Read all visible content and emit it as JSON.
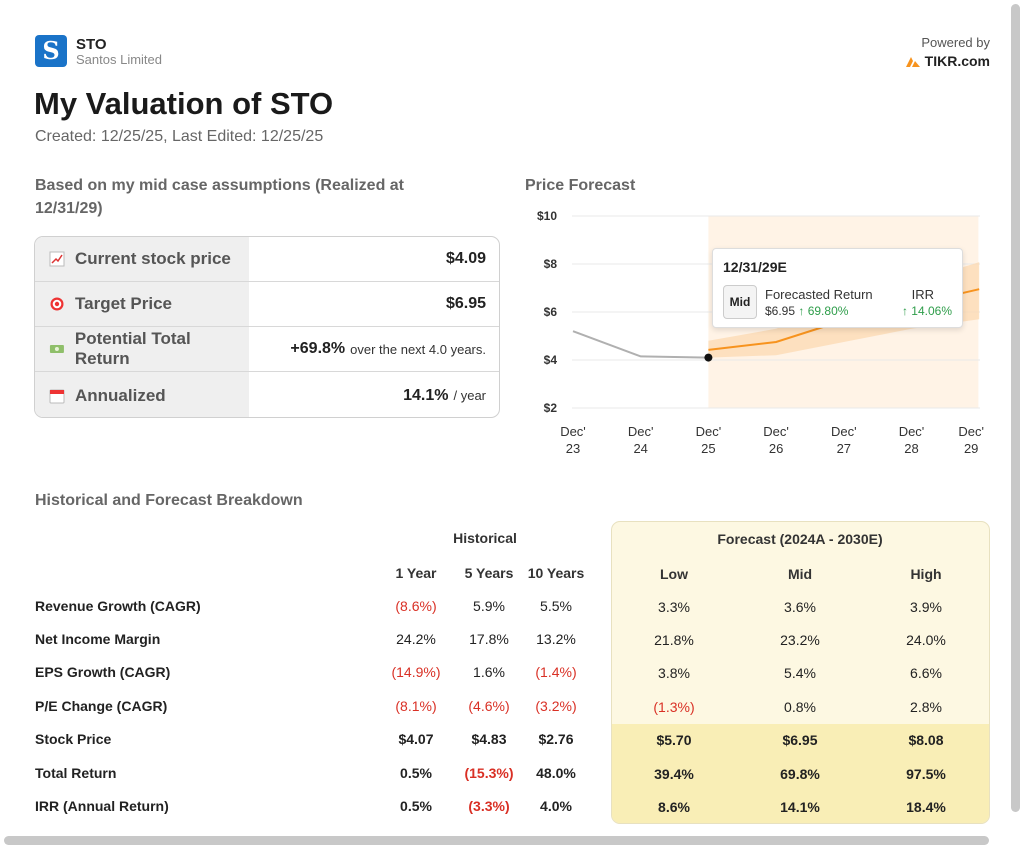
{
  "header": {
    "logo_letter": "S",
    "ticker": "STO",
    "company": "Santos Limited",
    "powered_by": "Powered by",
    "brand": "TIKR.com",
    "title": "My Valuation of STO",
    "subtitle": "Created: 12/25/25, Last Edited: 12/25/25"
  },
  "summary": {
    "heading": "Based on my mid case assumptions (Realized at 12/31/29)",
    "rows": [
      {
        "icon": "chart-increasing-icon",
        "label": "Current stock price",
        "value": "$4.09",
        "suffix": ""
      },
      {
        "icon": "target-icon",
        "label": "Target Price",
        "value": "$6.95",
        "suffix": ""
      },
      {
        "icon": "money-icon",
        "label": "Potential Total Return",
        "value": "+69.8%",
        "suffix": "over the next 4.0 years."
      },
      {
        "icon": "calendar-icon",
        "label": "Annualized",
        "value": "14.1%",
        "suffix": "/ year"
      }
    ]
  },
  "chart": {
    "heading": "Price Forecast",
    "tooltip": {
      "date": "12/31/29E",
      "badge": "Mid",
      "return_label": "Forecasted Return",
      "return_value": "$6.95",
      "return_pct": "↑ 69.80%",
      "irr_label": "IRR",
      "irr_value": "↑ 14.06%"
    }
  },
  "chart_data": {
    "type": "line",
    "x": [
      "Dec' 23",
      "Dec' 24",
      "Dec' 25",
      "Dec' 26",
      "Dec' 27",
      "Dec' 28",
      "Dec' 29"
    ],
    "y_ticks": [
      "$10",
      "$8",
      "$6",
      "$4",
      "$2"
    ],
    "ylim": [
      2,
      10
    ],
    "series": [
      {
        "kind": "historical",
        "color": "#b0b0b0",
        "points": [
          [
            0,
            5.2
          ],
          [
            1,
            4.15
          ],
          [
            2,
            4.1
          ]
        ]
      },
      {
        "kind": "forecast-mid",
        "color": "#f7931e",
        "points": [
          [
            2,
            4.42
          ],
          [
            3,
            4.75
          ],
          [
            4,
            5.65
          ],
          [
            5,
            6.3
          ],
          [
            6,
            6.95
          ]
        ]
      }
    ],
    "band": {
      "low": [
        [
          2,
          4.1
        ],
        [
          3,
          4.2
        ],
        [
          4,
          4.75
        ],
        [
          5,
          5.3
        ],
        [
          6,
          5.7
        ]
      ],
      "high": [
        [
          2,
          4.8
        ],
        [
          3,
          5.3
        ],
        [
          4,
          6.4
        ],
        [
          5,
          7.2
        ],
        [
          6,
          8.08
        ]
      ]
    },
    "current_marker": [
      2,
      4.1
    ]
  },
  "breakdown": {
    "heading": "Historical and Forecast Breakdown",
    "historical_label": "Historical",
    "forecast_label": "Forecast (2024A - 2030E)",
    "hist_cols": [
      "1 Year",
      "5 Years",
      "10 Years"
    ],
    "fc_cols": [
      "Low",
      "Mid",
      "High"
    ],
    "rows": [
      {
        "label": "Revenue Growth (CAGR)",
        "hist": [
          "(8.6%)",
          "5.9%",
          "5.5%"
        ],
        "fc": [
          "3.3%",
          "3.6%",
          "3.9%"
        ]
      },
      {
        "label": "Net Income Margin",
        "hist": [
          "24.2%",
          "17.8%",
          "13.2%"
        ],
        "fc": [
          "21.8%",
          "23.2%",
          "24.0%"
        ]
      },
      {
        "label": "EPS Growth (CAGR)",
        "hist": [
          "(14.9%)",
          "1.6%",
          "(1.4%)"
        ],
        "fc": [
          "3.8%",
          "5.4%",
          "6.6%"
        ]
      },
      {
        "label": "P/E Change (CAGR)",
        "hist": [
          "(8.1%)",
          "(4.6%)",
          "(3.2%)"
        ],
        "fc": [
          "(1.3%)",
          "0.8%",
          "2.8%"
        ]
      },
      {
        "label": "Stock Price",
        "hist": [
          "$4.07",
          "$4.83",
          "$2.76"
        ],
        "fc": [
          "$5.70",
          "$6.95",
          "$8.08"
        ]
      },
      {
        "label": "Total Return",
        "hist": [
          "0.5%",
          "(15.3%)",
          "48.0%"
        ],
        "fc": [
          "39.4%",
          "69.8%",
          "97.5%"
        ]
      },
      {
        "label": "IRR (Annual Return)",
        "hist": [
          "0.5%",
          "(3.3%)",
          "4.0%"
        ],
        "fc": [
          "8.6%",
          "14.1%",
          "18.4%"
        ]
      }
    ]
  }
}
